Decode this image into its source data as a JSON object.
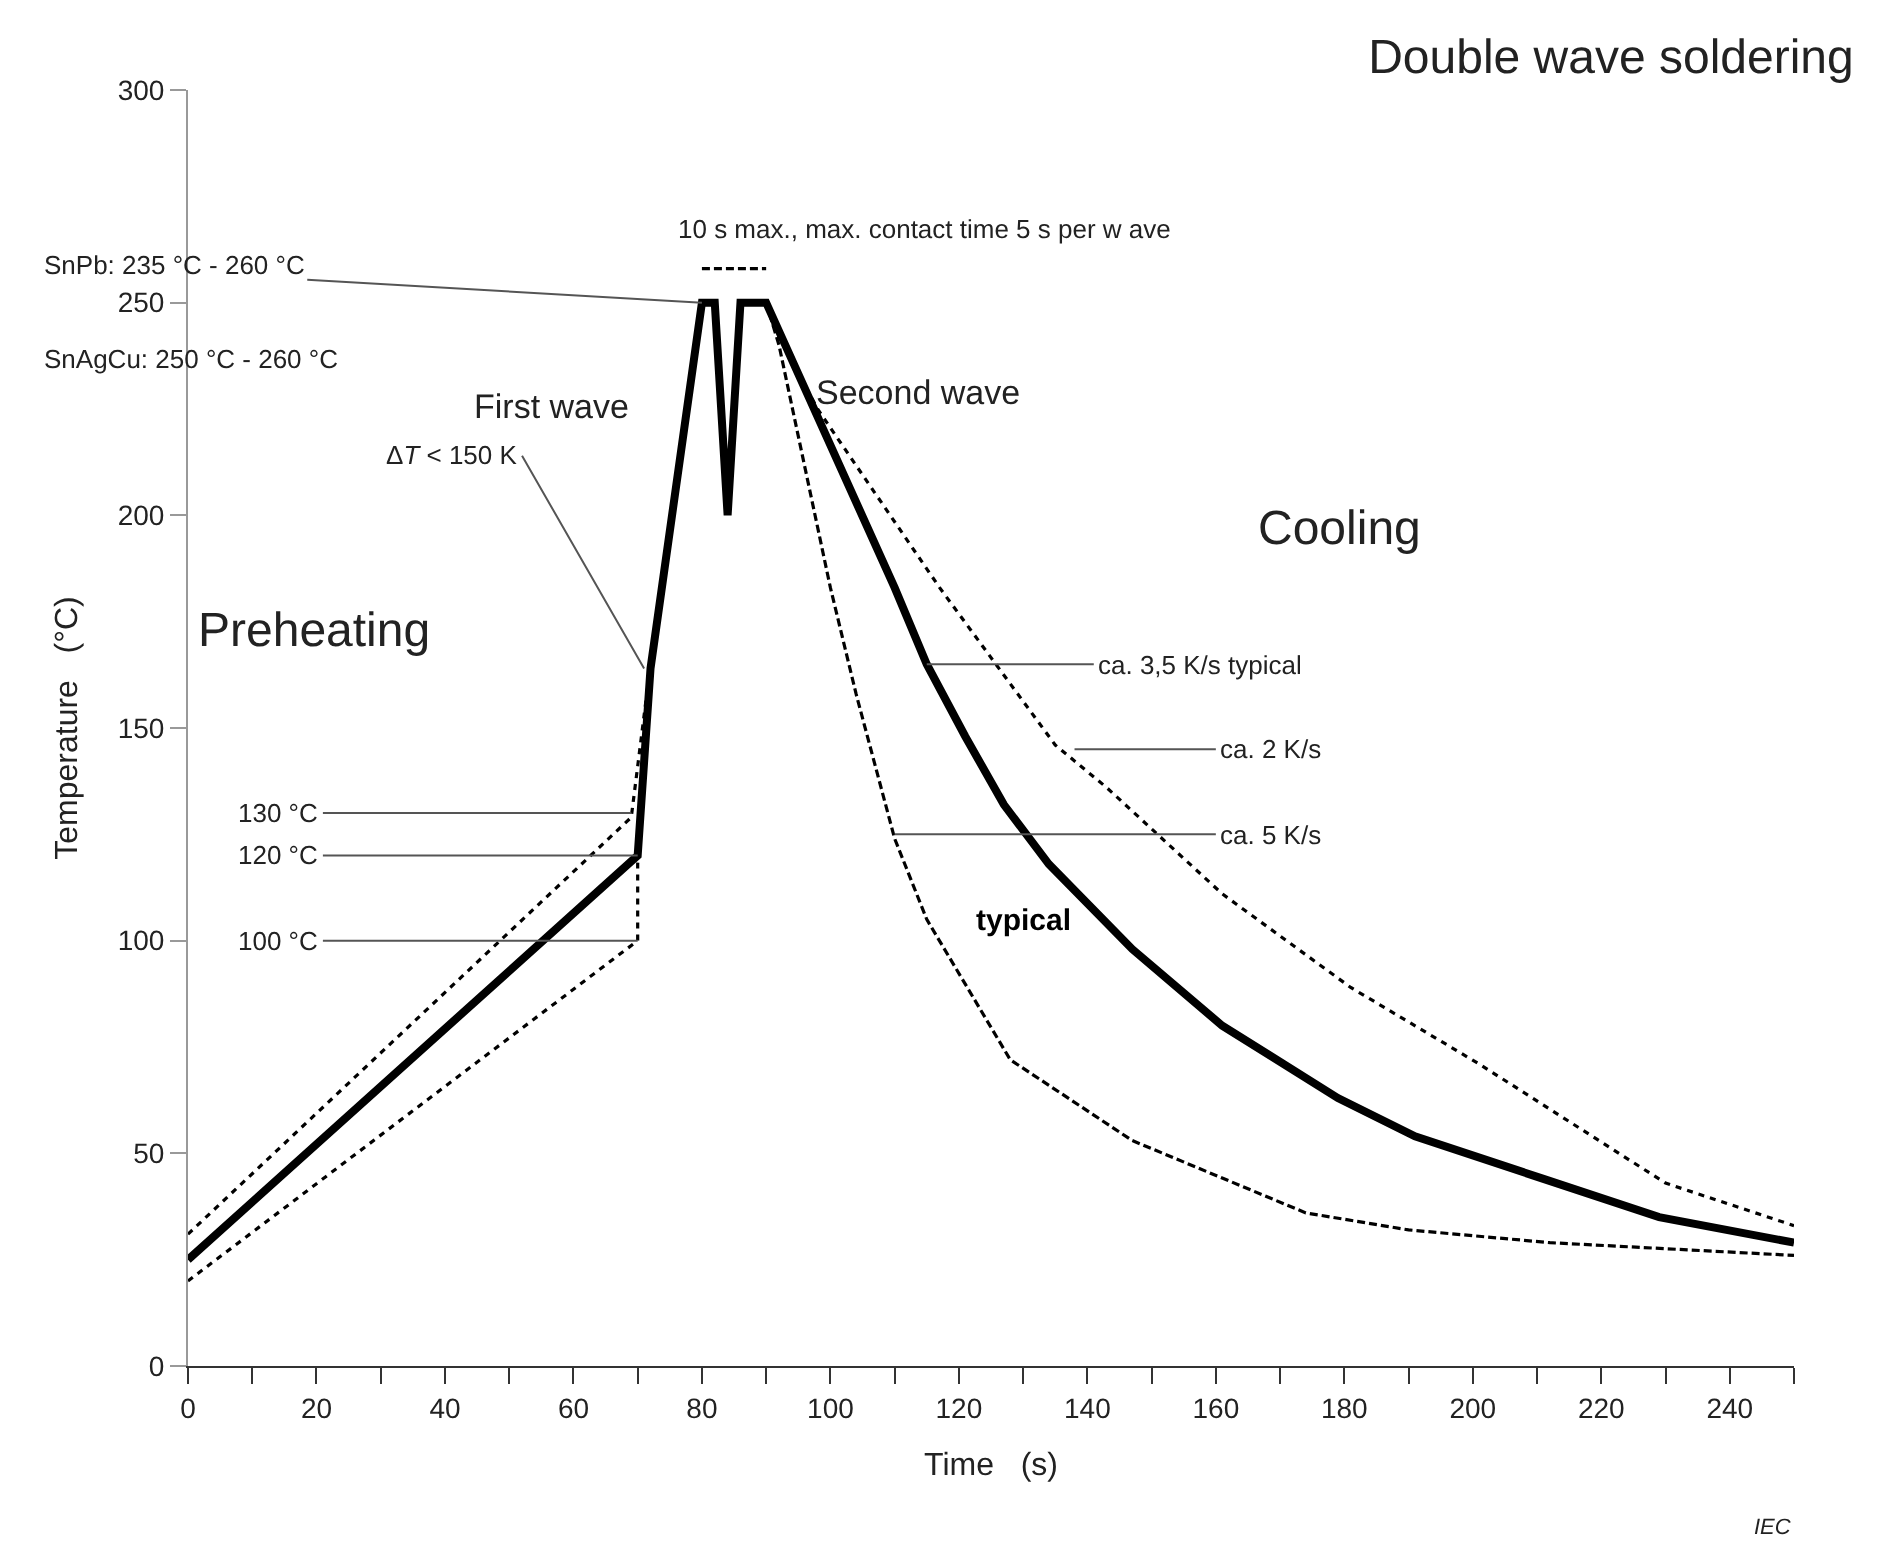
{
  "chart_data": {
    "type": "line",
    "title": "Double wave soldering",
    "xlabel": "Time   (s)",
    "ylabel": "Temperature   (°C)",
    "xlim": [
      0,
      250
    ],
    "ylim": [
      0,
      300
    ],
    "xticks": [
      0,
      {
        "value": 10,
        "label": null
      },
      20,
      {
        "value": 30,
        "label": null
      },
      40,
      {
        "value": 50,
        "label": null
      },
      60,
      {
        "value": 70,
        "label": null
      },
      80,
      {
        "value": 90,
        "label": null
      },
      100,
      {
        "value": 110,
        "label": null
      },
      120,
      {
        "value": 130,
        "label": null
      },
      140,
      {
        "value": 150,
        "label": null
      },
      160,
      {
        "value": 170,
        "label": null
      },
      180,
      {
        "value": 190,
        "label": null
      },
      200,
      {
        "value": 210,
        "label": null
      },
      220,
      {
        "value": 230,
        "label": null
      },
      240,
      {
        "value": 250,
        "label": null
      }
    ],
    "yticks": [
      0,
      50,
      100,
      150,
      200,
      250,
      300
    ],
    "grid": false,
    "legend": false,
    "marker": "none",
    "series": [
      {
        "name": "typical",
        "color": "#000000",
        "line_style": "solid",
        "x": [
          0,
          70,
          72,
          80,
          82,
          84,
          86,
          90,
          110,
          115,
          121,
          127,
          134,
          147,
          161,
          179,
          191,
          211,
          229,
          250
        ],
        "values": [
          25,
          120,
          164,
          250,
          250,
          200,
          250,
          250,
          183,
          165,
          148,
          132,
          118,
          98,
          80,
          63,
          54,
          44,
          35,
          29
        ]
      },
      {
        "color": "#000000",
        "line_style": "dotted",
        "x": [
          0,
          69,
          72
        ],
        "values": [
          31,
          129,
          165
        ]
      },
      {
        "color": "#000000",
        "line_style": "dotted",
        "x": [
          0,
          70,
          70,
          72
        ],
        "values": [
          20,
          100,
          118,
          165
        ]
      },
      {
        "color": "#000000",
        "line_style": "dotted",
        "x": [
          91,
          98,
          117,
          135,
          143,
          161,
          181,
          201,
          230,
          250
        ],
        "values": [
          245,
          225,
          183,
          146,
          136,
          111,
          89,
          71,
          43,
          33
        ]
      },
      {
        "color": "#000000",
        "line_style": "dashed",
        "x": [
          80,
          90
        ],
        "values": [
          258,
          258
        ]
      },
      {
        "color": "#000000",
        "line_style": "dashed",
        "x": [
          90,
          92,
          100,
          104,
          110,
          115,
          128,
          147,
          174,
          190,
          212,
          250
        ],
        "values": [
          250,
          240,
          183,
          158,
          124,
          105,
          72,
          53,
          36,
          32,
          29,
          26
        ]
      }
    ],
    "annotations": [
      {
        "text": "SnPb: 235 °C - 260 °C",
        "x": 80,
        "y": 250
      },
      "SnAgCu: 250 °C - 260 °C",
      "First wave",
      "Second wave",
      "Cooling",
      "Preheating",
      {
        "text": "ΔT < 150 K",
        "x": 71,
        "y": 164
      },
      {
        "text": "ca. 3,5 K/s typical",
        "x": 115,
        "y": 165
      },
      {
        "text": "ca. 2 K/s",
        "x": 138,
        "y": 145
      },
      {
        "text": "ca. 5 K/s",
        "x": 110,
        "y": 125
      },
      {
        "text": "130 °C",
        "x": 69,
        "y": 130
      },
      {
        "text": "120 °C",
        "x": 70,
        "y": 120
      },
      {
        "text": "100 °C",
        "x": 70,
        "y": 100
      },
      {
        "text": "10 s max., max. contact time 5 s per w ave",
        "x": 85,
        "y": 258
      },
      "IEC"
    ]
  }
}
